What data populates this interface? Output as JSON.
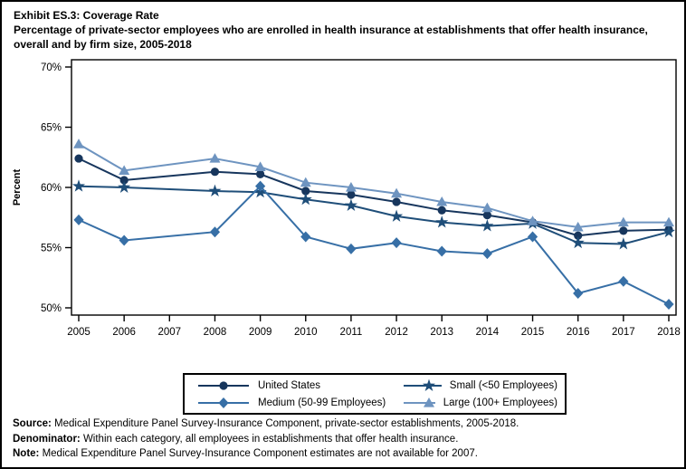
{
  "header": {
    "title": "Exhibit ES.3: Coverage Rate",
    "subtitle": "Percentage of private-sector employees who are enrolled in health insurance at establishments that offer health insurance, overall and by firm size, 2005-2018"
  },
  "chart_data": {
    "type": "line",
    "ylabel": "Percent",
    "ylim": [
      50,
      70
    ],
    "yticks": [
      70,
      65,
      60,
      55,
      50
    ],
    "ytick_suffix": "%",
    "grid": false,
    "legend_position": "bottom",
    "x": [
      2005,
      2006,
      2007,
      2008,
      2009,
      2010,
      2011,
      2012,
      2013,
      2014,
      2015,
      2016,
      2017,
      2018
    ],
    "missing_data_year": 2007,
    "series": [
      {
        "name": "United States",
        "marker": "circle",
        "color": "#17365D",
        "values": [
          62.4,
          60.6,
          null,
          61.3,
          61.1,
          59.7,
          59.4,
          58.8,
          58.1,
          57.7,
          57.1,
          56.0,
          56.4,
          56.5
        ]
      },
      {
        "name": "Small (<50 Employees)",
        "marker": "star",
        "color": "#1F4E79",
        "values": [
          60.1,
          60.0,
          null,
          59.7,
          59.6,
          59.0,
          58.5,
          57.6,
          57.1,
          56.8,
          57.0,
          55.4,
          55.3,
          56.3
        ]
      },
      {
        "name": "Medium (50-99 Employees)",
        "marker": "diamond",
        "color": "#376FA6",
        "values": [
          57.3,
          55.6,
          null,
          56.3,
          60.1,
          55.9,
          54.9,
          55.4,
          54.7,
          54.5,
          55.9,
          51.2,
          52.2,
          50.3
        ]
      },
      {
        "name": "Large (100+ Employees)",
        "marker": "triangle",
        "color": "#6E94C0",
        "values": [
          63.6,
          61.4,
          null,
          62.4,
          61.7,
          60.4,
          60.0,
          59.5,
          58.8,
          58.3,
          57.2,
          56.7,
          57.1,
          57.1
        ]
      }
    ],
    "legend_order": [
      "United States",
      "Small (<50 Employees)",
      "Medium (50-99 Employees)",
      "Large (100+ Employees)"
    ]
  },
  "footnotes": [
    {
      "label": "Source:",
      "text": "Medical Expenditure Panel Survey-Insurance Component, private-sector establishments, 2005-2018."
    },
    {
      "label": "Denominator:",
      "text": "Within each category, all employees in establishments that offer health insurance."
    },
    {
      "label": "Note:",
      "text": "Medical Expenditure Panel Survey-Insurance Component estimates are not available for 2007."
    }
  ]
}
